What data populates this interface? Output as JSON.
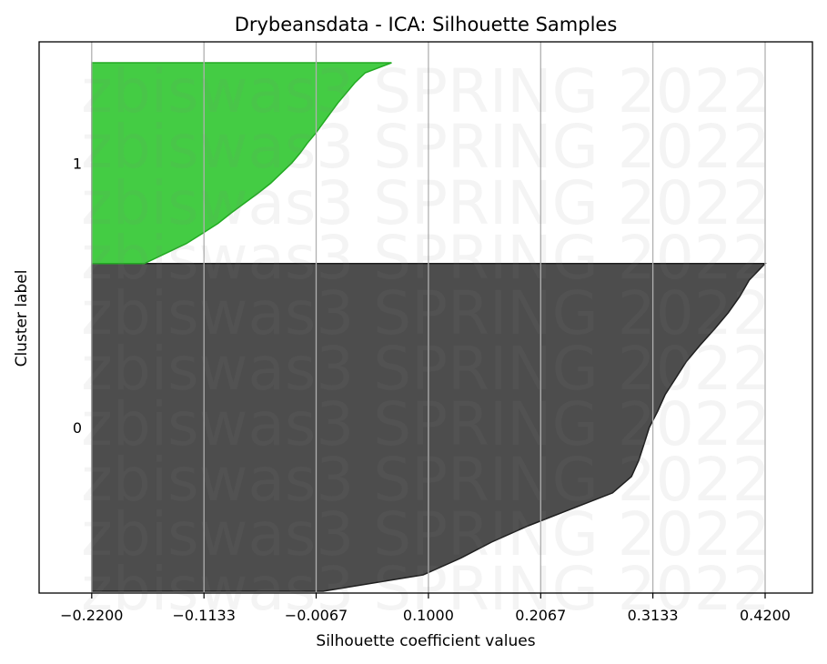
{
  "chart_data": {
    "type": "area",
    "title": "Drybeansdata - ICA: Silhouette Samples",
    "xlabel": "Silhouette coefficient values",
    "ylabel": "Cluster label",
    "xlim": [
      -0.27,
      0.465
    ],
    "x_ticks": [
      "-0.2200",
      "-0.1133",
      "-0.0067",
      "0.1000",
      "0.2067",
      "0.3133",
      "0.4200"
    ],
    "x_tick_values": [
      -0.22,
      -0.1133,
      -0.0067,
      0.1,
      0.2067,
      0.3133,
      0.42
    ],
    "vertical_grid": true,
    "baseline_x": -0.22,
    "series": [
      {
        "name": "0",
        "color": "#4d4d4d",
        "edge_color": "#1f1f1f",
        "fraction_of_samples": 0.62,
        "profile": [
          [
            0.0,
            0.0
          ],
          [
            0.05,
            0.095
          ],
          [
            0.1,
            0.13
          ],
          [
            0.15,
            0.16
          ],
          [
            0.2,
            0.195
          ],
          [
            0.25,
            0.235
          ],
          [
            0.3,
            0.275
          ],
          [
            0.35,
            0.293
          ],
          [
            0.4,
            0.3
          ],
          [
            0.45,
            0.305
          ],
          [
            0.5,
            0.31
          ],
          [
            0.55,
            0.318
          ],
          [
            0.6,
            0.325
          ],
          [
            0.65,
            0.335
          ],
          [
            0.7,
            0.345
          ],
          [
            0.75,
            0.358
          ],
          [
            0.8,
            0.372
          ],
          [
            0.85,
            0.385
          ],
          [
            0.9,
            0.396
          ],
          [
            0.95,
            0.405
          ],
          [
            1.0,
            0.42
          ]
        ]
      },
      {
        "name": "1",
        "color": "#44cc44",
        "edge_color": "#22aa22",
        "fraction_of_samples": 0.38,
        "profile": [
          [
            0.0,
            -0.17
          ],
          [
            0.05,
            -0.15
          ],
          [
            0.1,
            -0.13
          ],
          [
            0.15,
            -0.115
          ],
          [
            0.2,
            -0.1
          ],
          [
            0.25,
            -0.088
          ],
          [
            0.3,
            -0.075
          ],
          [
            0.35,
            -0.062
          ],
          [
            0.4,
            -0.05
          ],
          [
            0.45,
            -0.04
          ],
          [
            0.5,
            -0.03
          ],
          [
            0.55,
            -0.022
          ],
          [
            0.6,
            -0.015
          ],
          [
            0.65,
            -0.007
          ],
          [
            0.7,
            0.0
          ],
          [
            0.75,
            0.007
          ],
          [
            0.8,
            0.014
          ],
          [
            0.85,
            0.022
          ],
          [
            0.9,
            0.03
          ],
          [
            0.95,
            0.04
          ],
          [
            1.0,
            0.065
          ]
        ]
      }
    ],
    "watermark": "zbiswas3 SPRING 2022"
  }
}
